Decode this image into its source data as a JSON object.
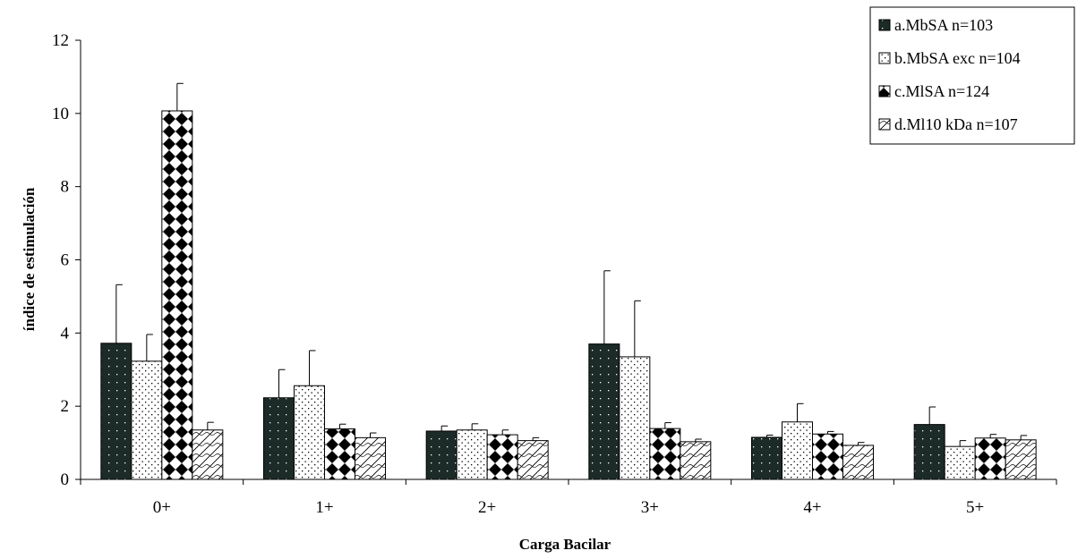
{
  "chart_data": {
    "type": "bar",
    "title": "",
    "xlabel": "Carga Bacilar",
    "ylabel": "índice de estimulación",
    "ylim": [
      0,
      12
    ],
    "yticks": [
      0,
      2,
      4,
      6,
      8,
      10,
      12
    ],
    "grid": false,
    "legend_position": "top-right",
    "categories": [
      "0+",
      "1+",
      "2+",
      "3+",
      "4+",
      "5+"
    ],
    "series": [
      {
        "name": "a.MbSA n=103",
        "pattern": "dark-dotted",
        "color": "#1c2b28",
        "values": [
          3.72,
          2.23,
          1.32,
          3.7,
          1.15,
          1.5
        ],
        "error_upper": [
          5.32,
          3.0,
          1.46,
          5.7,
          1.21,
          1.98
        ]
      },
      {
        "name": "b.MbSA exc n=104",
        "pattern": "light-dotted",
        "color": "#ffffff",
        "values": [
          3.23,
          2.56,
          1.35,
          3.35,
          1.57,
          0.9
        ],
        "error_upper": [
          3.96,
          3.52,
          1.52,
          4.88,
          2.07,
          1.06
        ]
      },
      {
        "name": "c.MlSA n=124",
        "pattern": "diamond-checker",
        "color": "#000000",
        "values": [
          10.07,
          1.38,
          1.22,
          1.39,
          1.24,
          1.13
        ],
        "error_upper": [
          10.82,
          1.51,
          1.35,
          1.55,
          1.31,
          1.23
        ]
      },
      {
        "name": "d.Ml10 kDa n=107",
        "pattern": "diagonal-wave",
        "color": "#ffffff",
        "values": [
          1.35,
          1.14,
          1.06,
          1.03,
          0.93,
          1.08
        ],
        "error_upper": [
          1.56,
          1.27,
          1.14,
          1.1,
          1.01,
          1.2
        ]
      }
    ]
  }
}
